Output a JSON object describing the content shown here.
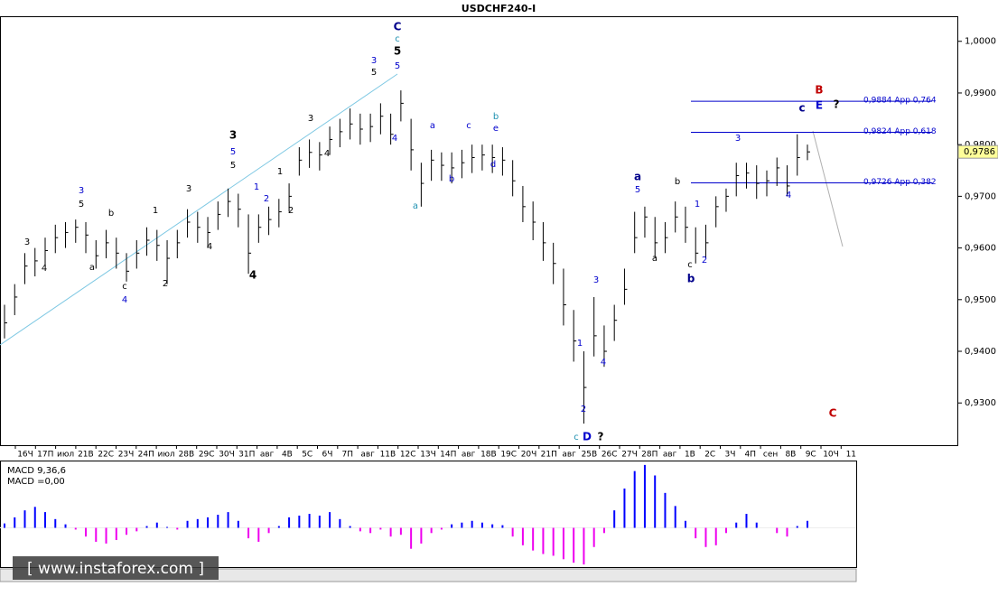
{
  "chart_data": {
    "type": "ohlc",
    "title": "USDCHF240-I",
    "color": "#000000",
    "ylim": [
      0.922,
      1.0045
    ],
    "yticks": [
      {
        "value": 1.0,
        "label": "1,0000"
      },
      {
        "value": 0.99,
        "label": "0,9900"
      },
      {
        "value": 0.98,
        "label": "0,9800"
      },
      {
        "value": 0.97,
        "label": "0,9700"
      },
      {
        "value": 0.96,
        "label": "0,9600"
      },
      {
        "value": 0.95,
        "label": "0,9500"
      },
      {
        "value": 0.94,
        "label": "0,9400"
      },
      {
        "value": 0.93,
        "label": "0,9300"
      }
    ],
    "current_price": {
      "value": 0.9786,
      "label": "0,9786"
    },
    "x_labels": [
      "16Ч",
      "17П",
      "июл",
      "21В",
      "22С",
      "23Ч",
      "24П",
      "июл",
      "28В",
      "29С",
      "30Ч",
      "31П",
      "авг",
      "4В",
      "5С",
      "6Ч",
      "7П",
      "авг",
      "11В",
      "12С",
      "13Ч",
      "14П",
      "авг",
      "18В",
      "19С",
      "20Ч",
      "21П",
      "авг",
      "25В",
      "26С",
      "27Ч",
      "28П",
      "авг",
      "1В",
      "2С",
      "3Ч",
      "4П",
      "сен",
      "8В",
      "9С",
      "10Ч",
      "11"
    ],
    "high": [
      0.949,
      0.953,
      0.959,
      0.96,
      0.962,
      0.9645,
      0.965,
      0.9655,
      0.965,
      0.9615,
      0.9635,
      0.962,
      0.959,
      0.9615,
      0.964,
      0.9635,
      0.9615,
      0.9635,
      0.9675,
      0.967,
      0.966,
      0.969,
      0.9715,
      0.9705,
      0.9665,
      0.9665,
      0.968,
      0.9695,
      0.9725,
      0.9795,
      0.981,
      0.9805,
      0.9835,
      0.985,
      0.987,
      0.986,
      0.986,
      0.988,
      0.986,
      0.9905,
      0.985,
      0.9765,
      0.979,
      0.9785,
      0.9785,
      0.979,
      0.98,
      0.98,
      0.98,
      0.9795,
      0.977,
      0.972,
      0.969,
      0.965,
      0.961,
      0.956,
      0.948,
      0.94,
      0.9505,
      0.945,
      0.949,
      0.956,
      0.967,
      0.968,
      0.966,
      0.965,
      0.969,
      0.968,
      0.964,
      0.9645,
      0.97,
      0.9715,
      0.9765,
      0.9765,
      0.976,
      0.975,
      0.9775,
      0.976,
      0.982,
      0.98
    ],
    "low": [
      0.9425,
      0.947,
      0.953,
      0.9545,
      0.9565,
      0.959,
      0.96,
      0.961,
      0.959,
      0.956,
      0.958,
      0.956,
      0.9535,
      0.956,
      0.9585,
      0.9575,
      0.953,
      0.958,
      0.962,
      0.961,
      0.96,
      0.9635,
      0.966,
      0.964,
      0.955,
      0.961,
      0.9625,
      0.964,
      0.967,
      0.974,
      0.9755,
      0.975,
      0.978,
      0.9795,
      0.981,
      0.98,
      0.9805,
      0.982,
      0.98,
      0.9845,
      0.975,
      0.968,
      0.973,
      0.973,
      0.9725,
      0.9735,
      0.9745,
      0.975,
      0.9745,
      0.974,
      0.97,
      0.965,
      0.9615,
      0.9575,
      0.953,
      0.945,
      0.938,
      0.926,
      0.939,
      0.937,
      0.942,
      0.949,
      0.959,
      0.962,
      0.958,
      0.959,
      0.963,
      0.961,
      0.957,
      0.958,
      0.964,
      0.967,
      0.97,
      0.9715,
      0.9695,
      0.97,
      0.972,
      0.97,
      0.974,
      0.977
    ],
    "close": [
      0.9455,
      0.9505,
      0.9565,
      0.9575,
      0.9595,
      0.962,
      0.963,
      0.964,
      0.9625,
      0.9585,
      0.961,
      0.959,
      0.9555,
      0.959,
      0.9615,
      0.9605,
      0.958,
      0.961,
      0.965,
      0.964,
      0.963,
      0.9665,
      0.969,
      0.9675,
      0.959,
      0.964,
      0.9655,
      0.967,
      0.97,
      0.977,
      0.9785,
      0.978,
      0.981,
      0.9825,
      0.984,
      0.983,
      0.9835,
      0.9855,
      0.982,
      0.988,
      0.979,
      0.9725,
      0.977,
      0.976,
      0.9755,
      0.9765,
      0.9775,
      0.978,
      0.9775,
      0.977,
      0.973,
      0.968,
      0.965,
      0.961,
      0.957,
      0.949,
      0.942,
      0.933,
      0.943,
      0.94,
      0.946,
      0.952,
      0.962,
      0.966,
      0.961,
      0.962,
      0.966,
      0.964,
      0.959,
      0.961,
      0.968,
      0.97,
      0.974,
      0.9745,
      0.9725,
      0.973,
      0.9755,
      0.972,
      0.9775,
      0.9786
    ],
    "levels": [
      {
        "value": 0.9884,
        "label": "0,9884 Арр 0,764"
      },
      {
        "value": 0.9824,
        "label": "0,9824 Арр 0,618"
      },
      {
        "value": 0.9726,
        "label": "0,9726 Арр 0,382"
      }
    ],
    "level_color": "#0000cc",
    "macd": {
      "label": "MACD 9,36,6",
      "value_label": "MACD =0,00",
      "ylim": [
        -0.0045,
        0.0075
      ],
      "up_color": "#0000ff",
      "down_color": "#ee00ee",
      "values": [
        0.0005,
        0.0012,
        0.002,
        0.0024,
        0.0018,
        0.001,
        0.0004,
        -0.0002,
        -0.001,
        -0.0016,
        -0.0018,
        -0.0014,
        -0.0008,
        -0.0004,
        0.0002,
        0.0006,
        0.0001,
        -0.0002,
        0.0008,
        0.001,
        0.0012,
        0.0015,
        0.0018,
        0.0008,
        -0.0012,
        -0.0016,
        -0.0006,
        0.0002,
        0.0012,
        0.0014,
        0.0016,
        0.0014,
        0.0018,
        0.001,
        0.0002,
        -0.0004,
        -0.0006,
        -0.0002,
        -0.001,
        -0.0008,
        -0.0024,
        -0.0018,
        -0.0006,
        -0.0002,
        0.0004,
        0.0006,
        0.0008,
        0.0006,
        0.0004,
        0.0003,
        -0.001,
        -0.002,
        -0.0026,
        -0.003,
        -0.0032,
        -0.0036,
        -0.004,
        -0.0042,
        -0.0022,
        -0.0006,
        0.002,
        0.0045,
        0.0065,
        0.0072,
        0.006,
        0.004,
        0.0025,
        0.0008,
        -0.0012,
        -0.0022,
        -0.002,
        -0.0006,
        0.0006,
        0.0016,
        0.0006,
        0.0,
        -0.0006,
        -0.001,
        0.0002,
        0.0008
      ]
    },
    "watermark": "[ www.instaforex.com ]",
    "annotations": [
      {
        "text": "C",
        "color": "#00008b"
      },
      {
        "text": "c",
        "color": "#1e90b0"
      },
      {
        "text": "5",
        "color": "#000000"
      },
      {
        "text": "5",
        "color": "#0000cd"
      },
      {
        "text": "3",
        "color": "#0000cd"
      },
      {
        "text": "5",
        "color": "#000000"
      },
      {
        "text": "4",
        "color": "#0000cd"
      },
      {
        "text": "a",
        "color": "#1e90b0"
      },
      {
        "text": "a",
        "color": "#0000cd"
      },
      {
        "text": "b",
        "color": "#0000cd"
      },
      {
        "text": "c",
        "color": "#0000cd"
      },
      {
        "text": "b",
        "color": "#1e90b0"
      },
      {
        "text": "e",
        "color": "#0000cd"
      },
      {
        "text": "d",
        "color": "#0000cd"
      },
      {
        "text": "3",
        "color": "#000000"
      },
      {
        "text": "5",
        "color": "#0000cd"
      },
      {
        "text": "5",
        "color": "#000000"
      },
      {
        "text": "1",
        "color": "#0000cd"
      },
      {
        "text": "2",
        "color": "#0000cd"
      },
      {
        "text": "2",
        "color": "#000000"
      },
      {
        "text": "1",
        "color": "#000000"
      },
      {
        "text": "3",
        "color": "#000000"
      },
      {
        "text": "4",
        "color": "#000000"
      },
      {
        "text": "4",
        "color": "#000000"
      },
      {
        "text": "3",
        "color": "#0000cd"
      },
      {
        "text": "5",
        "color": "#000000"
      },
      {
        "text": "3",
        "color": "#000000"
      },
      {
        "text": "4",
        "color": "#000000"
      },
      {
        "text": "a",
        "color": "#000000"
      },
      {
        "text": "b",
        "color": "#000000"
      },
      {
        "text": "c",
        "color": "#000000"
      },
      {
        "text": "4",
        "color": "#0000cd"
      },
      {
        "text": "1",
        "color": "#000000"
      },
      {
        "text": "2",
        "color": "#000000"
      },
      {
        "text": "3",
        "color": "#000000"
      },
      {
        "text": "4",
        "color": "#000000"
      },
      {
        "text": "3",
        "color": "#0000cd"
      },
      {
        "text": "1",
        "color": "#0000cd"
      },
      {
        "text": "4",
        "color": "#0000cd"
      },
      {
        "text": "2",
        "color": "#0000cd"
      },
      {
        "text": "c",
        "color": "#1e90b0"
      },
      {
        "text": "D",
        "color": "#0000cd"
      },
      {
        "text": "?",
        "color": "#000000"
      },
      {
        "text": "a",
        "color": "#00008b"
      },
      {
        "text": "5",
        "color": "#0000cd"
      },
      {
        "text": "a",
        "color": "#000000"
      },
      {
        "text": "b",
        "color": "#000000"
      },
      {
        "text": "1",
        "color": "#0000cd"
      },
      {
        "text": "c",
        "color": "#000000"
      },
      {
        "text": "b",
        "color": "#00008b"
      },
      {
        "text": "2",
        "color": "#0000cd"
      },
      {
        "text": "3",
        "color": "#0000cd"
      },
      {
        "text": "4",
        "color": "#0000cd"
      },
      {
        "text": "c",
        "color": "#00008b"
      },
      {
        "text": "E",
        "color": "#0000cd"
      },
      {
        "text": "?",
        "color": "#000000"
      },
      {
        "text": "B",
        "color": "#c00000"
      },
      {
        "text": "C",
        "color": "#c00000"
      }
    ]
  }
}
